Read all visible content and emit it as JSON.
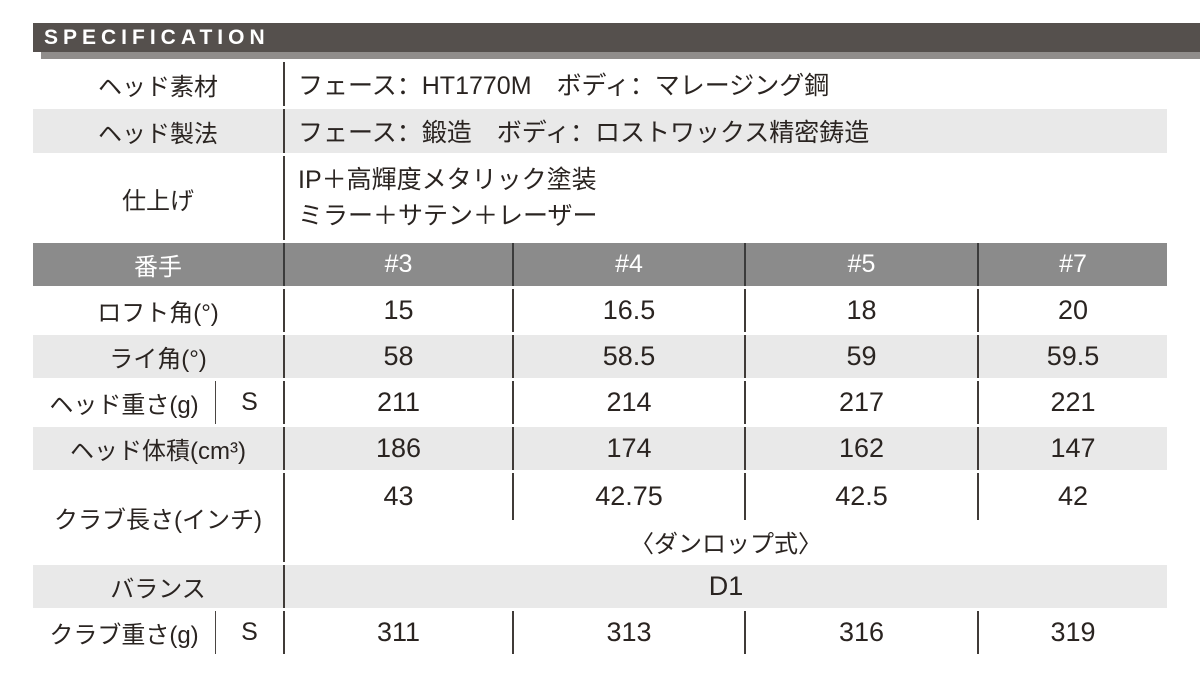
{
  "header": {
    "title": "SPECIFICATION"
  },
  "info_rows": [
    {
      "label": "ヘッド素材",
      "value": "フェース：HT1770M　ボディ：マレージング鋼"
    },
    {
      "label": "ヘッド製法",
      "value": "フェース：鍛造　ボディ：ロストワックス精密鋳造"
    },
    {
      "label": "仕上げ",
      "value_line1": "IP＋高輝度メタリック塗装",
      "value_line2": "ミラー＋サテン＋レーザー"
    }
  ],
  "spec_table": {
    "header": {
      "label": "番手",
      "clubs": [
        "#3",
        "#4",
        "#5",
        "#7"
      ]
    },
    "rows": [
      {
        "label": "ロフト角(°)",
        "values": [
          "15",
          "16.5",
          "18",
          "20"
        ]
      },
      {
        "label": "ライ角(°)",
        "values": [
          "58",
          "58.5",
          "59",
          "59.5"
        ]
      },
      {
        "label": "ヘッド重さ(g)",
        "sub": "S",
        "values": [
          "211",
          "214",
          "217",
          "221"
        ]
      },
      {
        "label": "ヘッド体積(cm³)",
        "values": [
          "186",
          "174",
          "162",
          "147"
        ]
      },
      {
        "label": "クラブ長さ(インチ)",
        "values": [
          "43",
          "42.75",
          "42.5",
          "42"
        ],
        "note": "〈ダンロップ式〉"
      },
      {
        "label": "バランス",
        "span_value": "D1"
      },
      {
        "label": "クラブ重さ(g)",
        "sub": "S",
        "values": [
          "311",
          "313",
          "316",
          "319"
        ]
      }
    ]
  },
  "colors": {
    "bar_background": "#55504d",
    "bar_shadow": "#908d8b",
    "column_header_background": "#8b8b8b",
    "zebra_row_background": "#e9e9e9",
    "divider": "#403b38",
    "text": "#2a2421"
  }
}
